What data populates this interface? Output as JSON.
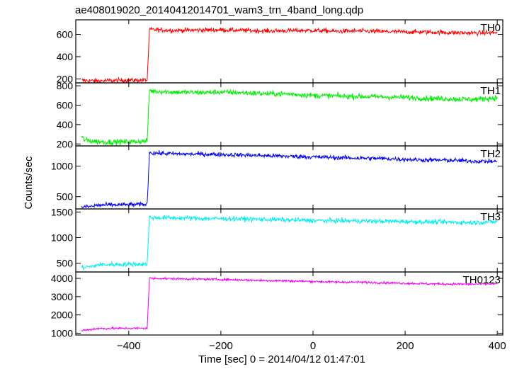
{
  "title": "ae408019020_20140412014701_wam3_trn_4band_long.qdp",
  "chart_data": {
    "type": "line",
    "title": "ae408019020_20140412014701_wam3_trn_4band_long.qdp",
    "xlabel": "Time [sec] 0 = 2014/04/12 01:47:01",
    "ylabel": "Counts/sec",
    "xlim": [
      -515,
      412
    ],
    "x_ticks": [
      -400,
      -200,
      0,
      200,
      400
    ],
    "x_tick_labels": [
      "−400",
      "−200",
      "0",
      "200",
      "400"
    ],
    "grid": false,
    "x_step": 1,
    "series": [
      {
        "name": "TH0",
        "color": "#ff0000",
        "ylim": [
          165,
          730
        ],
        "y_ticks": [
          200,
          400,
          600
        ],
        "x": [
          -502,
          -470,
          -440,
          -400,
          -360,
          -355,
          -350,
          -300,
          -250,
          -200,
          -150,
          -100,
          -50,
          0,
          50,
          100,
          150,
          200,
          250,
          300,
          350,
          400
        ],
        "y": [
          188,
          182,
          185,
          188,
          190,
          640,
          642,
          635,
          638,
          640,
          635,
          630,
          633,
          635,
          628,
          630,
          625,
          622,
          620,
          615,
          612,
          615
        ],
        "noise": 20
      },
      {
        "name": "TH1",
        "color": "#00ee00",
        "ylim": [
          180,
          830
        ],
        "y_ticks": [
          200,
          400,
          600,
          800
        ],
        "x": [
          -502,
          -495,
          -470,
          -440,
          -400,
          -360,
          -355,
          -350,
          -300,
          -250,
          -200,
          -150,
          -100,
          -50,
          0,
          50,
          100,
          150,
          200,
          250,
          300,
          350,
          400
        ],
        "y": [
          270,
          240,
          225,
          220,
          222,
          230,
          760,
          745,
          735,
          730,
          735,
          728,
          718,
          715,
          700,
          695,
          690,
          685,
          680,
          670,
          665,
          660,
          675
        ],
        "noise": 28
      },
      {
        "name": "TH2",
        "color": "#0000ee",
        "ylim": [
          300,
          1330
        ],
        "y_ticks": [
          500,
          1000
        ],
        "x": [
          -502,
          -480,
          -470,
          -440,
          -400,
          -360,
          -355,
          -350,
          -300,
          -250,
          -200,
          -150,
          -100,
          -50,
          0,
          50,
          100,
          150,
          200,
          250,
          300,
          350,
          400
        ],
        "y": [
          330,
          340,
          360,
          365,
          370,
          375,
          1230,
          1215,
          1200,
          1195,
          1190,
          1180,
          1170,
          1160,
          1150,
          1140,
          1130,
          1125,
          1110,
          1100,
          1095,
          1080,
          1075
        ],
        "noise": 35
      },
      {
        "name": "TH3",
        "color": "#00eeee",
        "ylim": [
          330,
          1560
        ],
        "y_ticks": [
          500,
          1000,
          1500
        ],
        "x": [
          -502,
          -490,
          -475,
          -470,
          -440,
          -400,
          -360,
          -355,
          -350,
          -300,
          -250,
          -200,
          -150,
          -100,
          -50,
          0,
          50,
          100,
          150,
          200,
          250,
          300,
          350,
          400
        ],
        "y": [
          410,
          430,
          440,
          470,
          475,
          480,
          485,
          1400,
          1390,
          1385,
          1375,
          1370,
          1365,
          1355,
          1345,
          1335,
          1330,
          1325,
          1320,
          1315,
          1305,
          1300,
          1295,
          1310
        ],
        "noise": 45
      },
      {
        "name": "TH0123",
        "color": "#ee00ee",
        "ylim": [
          900,
          4350
        ],
        "y_ticks": [
          1000,
          2000,
          3000,
          4000
        ],
        "x": [
          -502,
          -490,
          -470,
          -440,
          -400,
          -360,
          -355,
          -350,
          -300,
          -250,
          -200,
          -150,
          -100,
          -50,
          0,
          50,
          100,
          150,
          200,
          250,
          300,
          350,
          400
        ],
        "y": [
          1150,
          1180,
          1250,
          1260,
          1265,
          1270,
          4020,
          4000,
          3980,
          3960,
          3940,
          3910,
          3880,
          3860,
          3830,
          3800,
          3790,
          3760,
          3730,
          3700,
          3690,
          3680,
          3700
        ],
        "noise": 60
      }
    ]
  }
}
